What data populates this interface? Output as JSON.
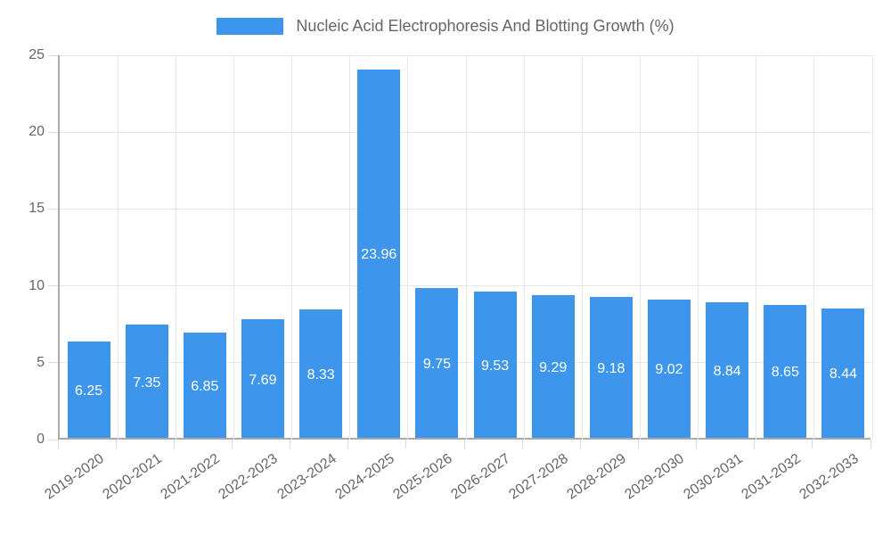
{
  "legend": {
    "label": "Nucleic Acid Electrophoresis And Blotting Growth (%)",
    "swatch_color": "#3E96EC"
  },
  "chart_data": {
    "type": "bar",
    "title": "Nucleic Acid Electrophoresis And Blotting Growth (%)",
    "categories": [
      "2019-2020",
      "2020-2021",
      "2021-2022",
      "2022-2023",
      "2023-2024",
      "2024-2025",
      "2025-2026",
      "2026-2027",
      "2027-2028",
      "2028-2029",
      "2029-2030",
      "2030-2031",
      "2031-2032",
      "2032-2033"
    ],
    "values": [
      6.25,
      7.35,
      6.85,
      7.69,
      8.33,
      23.96,
      9.75,
      9.53,
      9.29,
      9.18,
      9.02,
      8.84,
      8.65,
      8.44
    ],
    "bar_color": "#3E96EC",
    "value_label_color": "#ffffff",
    "axis_text_color": "#666666",
    "grid_color": "#e6e6e6",
    "axis_line_color": "#ababab",
    "xlabel": "",
    "ylabel": "",
    "ylim": [
      0,
      25
    ],
    "yticks": [
      0,
      5,
      10,
      15,
      20,
      25
    ],
    "grid": true,
    "legend_position": "top"
  }
}
